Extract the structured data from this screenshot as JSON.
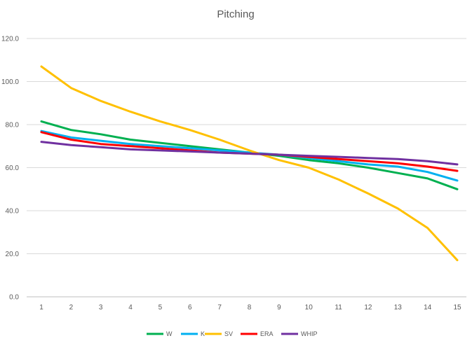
{
  "chart_data": {
    "type": "line",
    "title": "Pitching",
    "xlabel": "",
    "ylabel": "",
    "x": [
      1,
      2,
      3,
      4,
      5,
      6,
      7,
      8,
      9,
      10,
      11,
      12,
      13,
      14,
      15
    ],
    "ylim": [
      0,
      120
    ],
    "yticks": [
      "0.0",
      "20.0",
      "40.0",
      "60.0",
      "80.0",
      "100.0",
      "120.0"
    ],
    "xticks": [
      "1",
      "2",
      "3",
      "4",
      "5",
      "6",
      "7",
      "8",
      "9",
      "10",
      "11",
      "12",
      "13",
      "14",
      "15"
    ],
    "grid": true,
    "legend_position": "bottom",
    "series": [
      {
        "name": "W",
        "color": "#00b050",
        "values": [
          81.5,
          77.5,
          75.5,
          73.0,
          71.5,
          70.0,
          68.5,
          67.0,
          65.5,
          63.5,
          62.0,
          60.0,
          57.5,
          55.0,
          50.0
        ]
      },
      {
        "name": "K",
        "color": "#00b0f0",
        "values": [
          77.0,
          74.0,
          72.5,
          71.0,
          70.0,
          69.0,
          68.0,
          67.0,
          66.0,
          64.5,
          63.0,
          61.5,
          60.5,
          58.0,
          54.0
        ]
      },
      {
        "name": "SV",
        "color": "#ffc000",
        "values": [
          107.0,
          97.0,
          91.0,
          86.0,
          81.5,
          77.5,
          73.0,
          68.0,
          63.5,
          60.0,
          54.5,
          48.0,
          41.0,
          32.0,
          17.0
        ]
      },
      {
        "name": "ERA",
        "color": "#ff0000",
        "values": [
          76.5,
          73.0,
          71.0,
          70.0,
          69.0,
          68.0,
          67.0,
          66.5,
          66.0,
          65.0,
          64.0,
          63.0,
          62.0,
          60.5,
          58.5
        ]
      },
      {
        "name": "WHIP",
        "color": "#7030a0",
        "values": [
          72.0,
          70.5,
          69.5,
          68.5,
          68.0,
          67.5,
          67.0,
          66.5,
          66.0,
          65.5,
          65.0,
          64.5,
          64.0,
          63.0,
          61.5
        ]
      }
    ]
  }
}
